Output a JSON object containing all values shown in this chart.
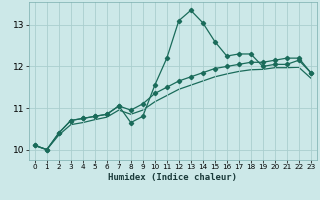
{
  "xlabel": "Humidex (Indice chaleur)",
  "ylabel": "",
  "bg_color": "#cce8e8",
  "grid_color": "#aacece",
  "line_color": "#1a6b5a",
  "xlim": [
    -0.5,
    23.5
  ],
  "ylim": [
    9.75,
    13.55
  ],
  "xticks": [
    0,
    1,
    2,
    3,
    4,
    5,
    6,
    7,
    8,
    9,
    10,
    11,
    12,
    13,
    14,
    15,
    16,
    17,
    18,
    19,
    20,
    21,
    22,
    23
  ],
  "yticks": [
    10,
    11,
    12,
    13
  ],
  "series1_x": [
    0,
    1,
    2,
    3,
    4,
    5,
    6,
    7,
    8,
    9,
    10,
    11,
    12,
    13,
    14,
    15,
    16,
    17,
    18,
    19,
    20,
    21,
    22,
    23
  ],
  "series1_y": [
    10.1,
    10.0,
    10.4,
    10.7,
    10.75,
    10.8,
    10.85,
    11.05,
    10.65,
    10.8,
    11.55,
    12.2,
    13.1,
    13.35,
    13.05,
    12.6,
    12.25,
    12.3,
    12.3,
    12.0,
    12.05,
    12.05,
    12.15,
    11.85
  ],
  "series2_x": [
    0,
    1,
    2,
    3,
    4,
    5,
    6,
    7,
    8,
    9,
    10,
    11,
    12,
    13,
    14,
    15,
    16,
    17,
    18,
    19,
    20,
    21,
    22,
    23
  ],
  "series2_y": [
    10.1,
    10.0,
    10.4,
    10.7,
    10.75,
    10.8,
    10.85,
    11.05,
    10.95,
    11.1,
    11.35,
    11.5,
    11.65,
    11.75,
    11.85,
    11.95,
    12.0,
    12.05,
    12.1,
    12.1,
    12.15,
    12.2,
    12.2,
    11.85
  ],
  "series3_x": [
    0,
    1,
    2,
    3,
    4,
    5,
    6,
    7,
    8,
    9,
    10,
    11,
    12,
    13,
    14,
    15,
    16,
    17,
    18,
    19,
    20,
    21,
    22,
    23
  ],
  "series3_y": [
    10.1,
    10.0,
    10.35,
    10.6,
    10.65,
    10.72,
    10.78,
    10.95,
    10.85,
    10.95,
    11.15,
    11.3,
    11.45,
    11.55,
    11.65,
    11.75,
    11.82,
    11.88,
    11.92,
    11.93,
    11.97,
    11.97,
    11.98,
    11.72
  ]
}
